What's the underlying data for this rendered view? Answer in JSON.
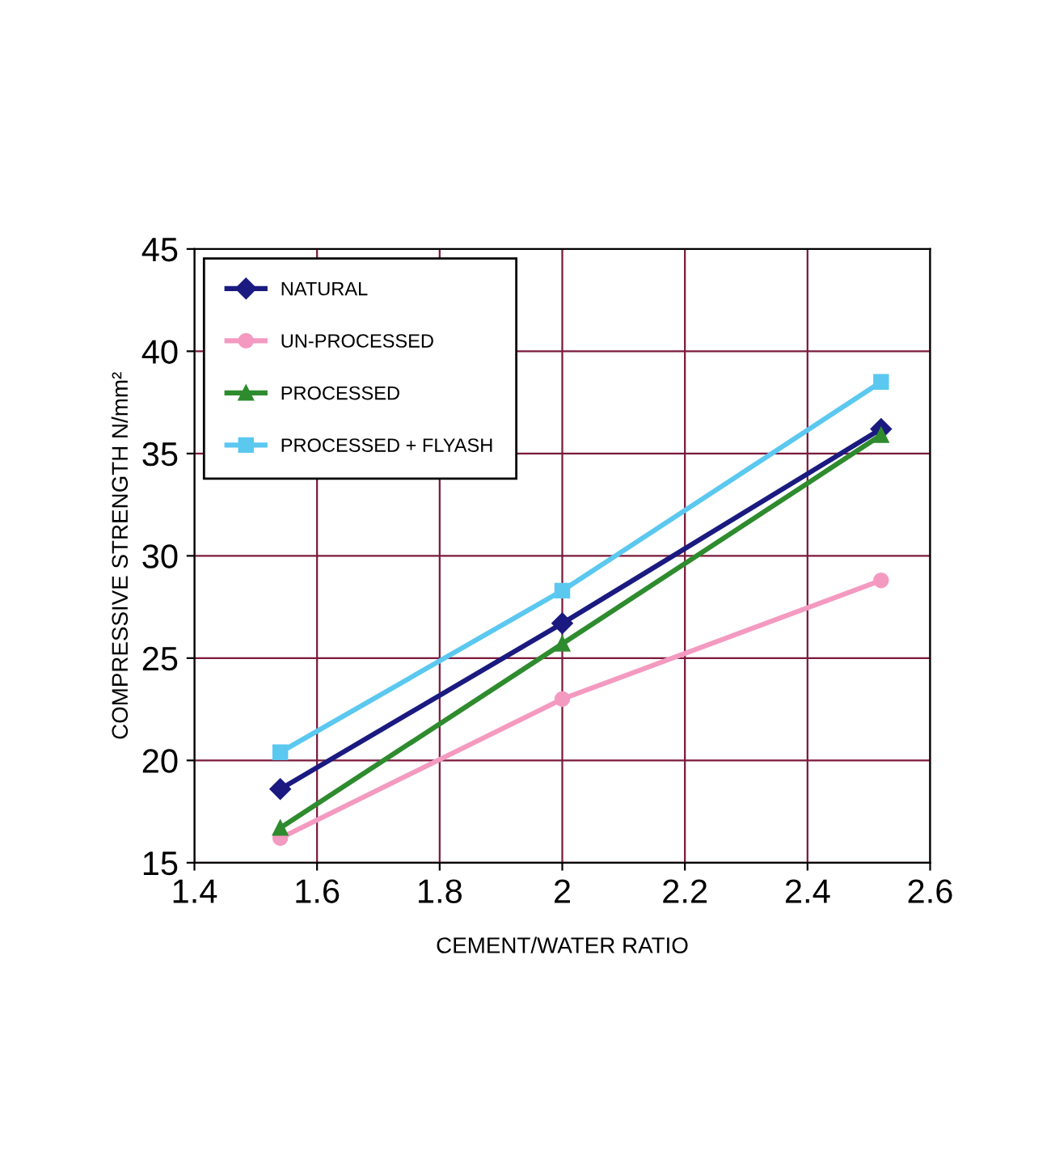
{
  "chart_data": {
    "type": "line",
    "xlabel": "CEMENT/WATER RATIO",
    "ylabel": "COMPRESSIVE STRENGTH N/mm²",
    "x": [
      1.54,
      2,
      2.52
    ],
    "series": [
      {
        "name": "NATURAL",
        "color": "#1a1a80",
        "marker": "diamond",
        "values": [
          18.6,
          26.7,
          36.2
        ]
      },
      {
        "name": "UN-PROCESSED",
        "color": "#f49ac1",
        "marker": "circle",
        "values": [
          16.2,
          23.0,
          28.8
        ]
      },
      {
        "name": "PROCESSED",
        "color": "#2e8b2e",
        "marker": "triangle",
        "values": [
          16.7,
          25.7,
          35.9
        ]
      },
      {
        "name": "PROCESSED + FLYASH",
        "color": "#5bc8f0",
        "marker": "square",
        "values": [
          20.4,
          28.3,
          38.5
        ]
      }
    ],
    "xlim": [
      1.4,
      2.6
    ],
    "xticks": [
      1.4,
      1.6,
      1.8,
      2,
      2.2,
      2.4,
      2.6
    ],
    "ylim": [
      15,
      45
    ],
    "yticks": [
      15,
      20,
      25,
      30,
      35,
      40,
      45
    ],
    "grid": true,
    "legend": "top left",
    "line_style": "solid"
  }
}
